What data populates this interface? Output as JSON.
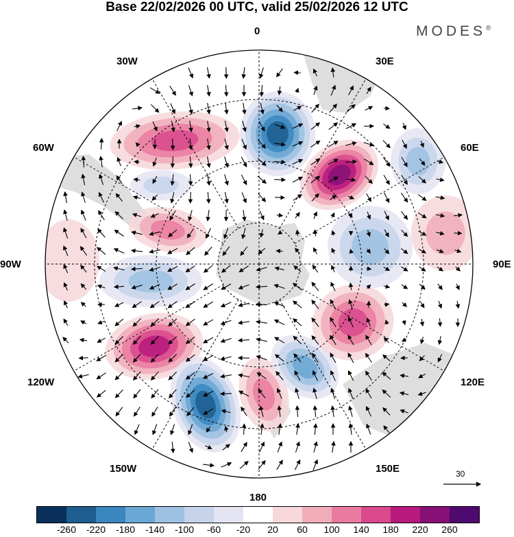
{
  "title": "Base 22/02/2026 00 UTC, valid 25/02/2026 12 UTC",
  "brand": {
    "name": "MODES",
    "mark": "®"
  },
  "lon_labels": {
    "top": "0",
    "bottom": "180",
    "left": "90W",
    "right": "90E",
    "nw1": "30W",
    "nw2": "60W",
    "ne1": "30E",
    "ne2": "60E",
    "sw1": "120W",
    "sw2": "150W",
    "se1": "120E",
    "se2": "150E"
  },
  "vector_scale": "30",
  "colorbar": {
    "colors": [
      "#08305a",
      "#1d5d8f",
      "#3a86bf",
      "#6aa7d4",
      "#9ec1e2",
      "#c6d3ea",
      "#e4e4f2",
      "#ffffff",
      "#f6d7da",
      "#f1acba",
      "#ea7ba0",
      "#d9498c",
      "#b7197c",
      "#861075",
      "#4e0a6e"
    ],
    "labels": [
      "-260",
      "-220",
      "-180",
      "-140",
      "-100",
      "-60",
      "-20",
      "20",
      "60",
      "100",
      "140",
      "180",
      "220",
      "260"
    ]
  },
  "anomalies": [
    {
      "name": "anomaly-positive-indian-ocean",
      "value": 230
    },
    {
      "name": "anomaly-negative-south-atlantic",
      "value": -220
    },
    {
      "name": "anomaly-positive-south-america",
      "value": 150
    },
    {
      "name": "anomaly-positive-drake",
      "value": 130
    },
    {
      "name": "anomaly-negative-amundsen",
      "value": -130
    },
    {
      "name": "anomaly-positive-pacific",
      "value": 190
    },
    {
      "name": "anomaly-negative-south-pacific",
      "value": -230
    },
    {
      "name": "anomaly-positive-ross",
      "value": 110
    },
    {
      "name": "anomaly-negative-tasman",
      "value": -150
    },
    {
      "name": "anomaly-positive-australia",
      "value": 150
    },
    {
      "name": "anomaly-negative-east-indian",
      "value": -110
    },
    {
      "name": "anomaly-negative-madagascar",
      "value": -100
    },
    {
      "name": "anomaly-negative-weddell",
      "value": -90
    },
    {
      "name": "anomaly-positive-east",
      "value": 60
    },
    {
      "name": "anomaly-positive-west",
      "value": 50
    }
  ]
}
